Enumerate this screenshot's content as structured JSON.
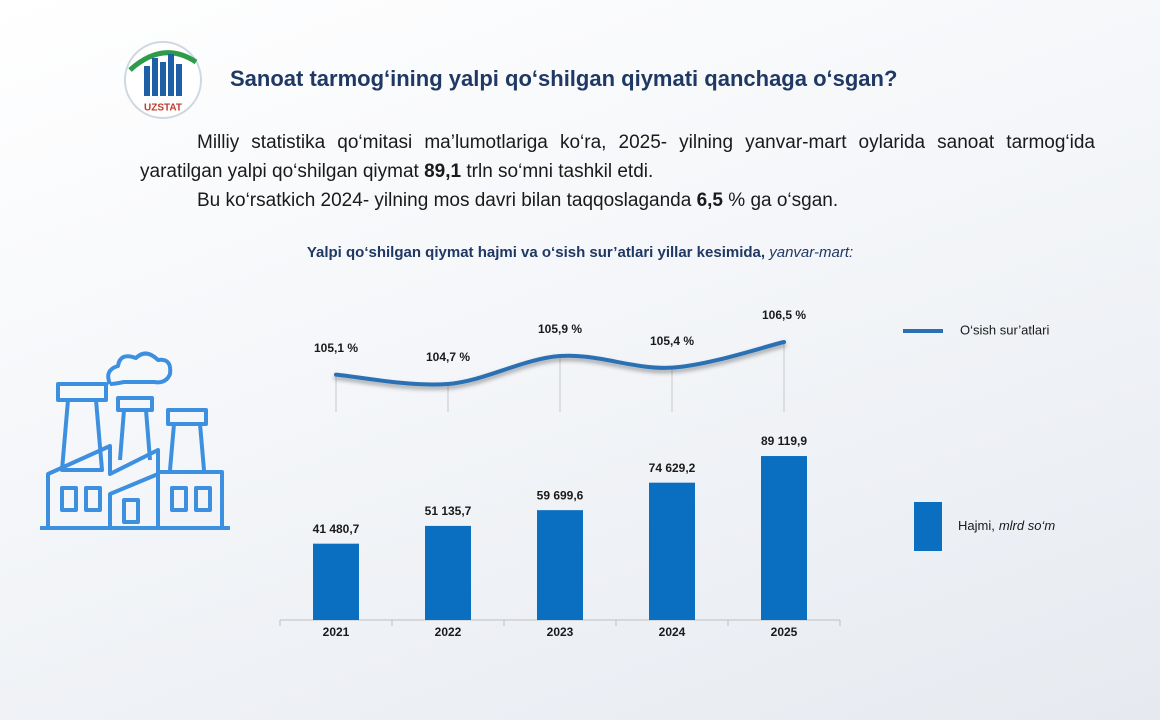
{
  "header": {
    "logo_text": "UZSTAT",
    "title": "Sanoat tarmog‘ining yalpi qo‘shilgan qiymati qanchaga o‘sgan?"
  },
  "text": {
    "paragraphs": [
      [
        {
          "text": "Milliy statistika qo‘mitasi ma’lumotlariga ko‘ra, 2025- yilning yanvar-mart oylarida sanoat tarmog‘ida yaratilgan yalpi qo‘shilgan qiymat ",
          "bold": false
        },
        {
          "text": "89,1",
          "bold": true
        },
        {
          "text": " trln so‘mni tashkil etdi.",
          "bold": false
        }
      ],
      [
        {
          "text": "Bu ko‘rsatkich 2024- yilning mos davri bilan taqqoslaganda ",
          "bold": false
        },
        {
          "text": "6,5",
          "bold": true
        },
        {
          "text": " % ga o‘sgan.",
          "bold": false
        }
      ]
    ]
  },
  "chart_data": {
    "type": "bar",
    "title": "Yalpi qo‘shilgan qiymat hajmi va o‘sish sur’atlari yillar kesimida,",
    "title_note": "yanvar-mart:",
    "categories": [
      "2021",
      "2022",
      "2023",
      "2024",
      "2025"
    ],
    "ylim": [
      0,
      100000
    ],
    "y2lim": [
      103.5,
      108.3
    ],
    "series": [
      {
        "name": "O‘sish sur’atlari",
        "type": "line",
        "axis": "y2",
        "color": "#2a70b3",
        "values": [
          105.1,
          104.7,
          105.9,
          105.4,
          106.5
        ],
        "value_labels": [
          "105,1 %",
          "104,7 %",
          "105,9 %",
          "105,4 %",
          "106,5 %"
        ]
      },
      {
        "name": "Hajmi,",
        "unit": "mlrd so‘m",
        "type": "bar",
        "color": "#0b6fc1",
        "values": [
          41480.7,
          51135.7,
          59699.6,
          74629.2,
          89119.9
        ],
        "value_labels": [
          "41 480,7",
          "51 135,7",
          "59 699,6",
          "74 629,2",
          "89 119,9"
        ]
      }
    ]
  }
}
